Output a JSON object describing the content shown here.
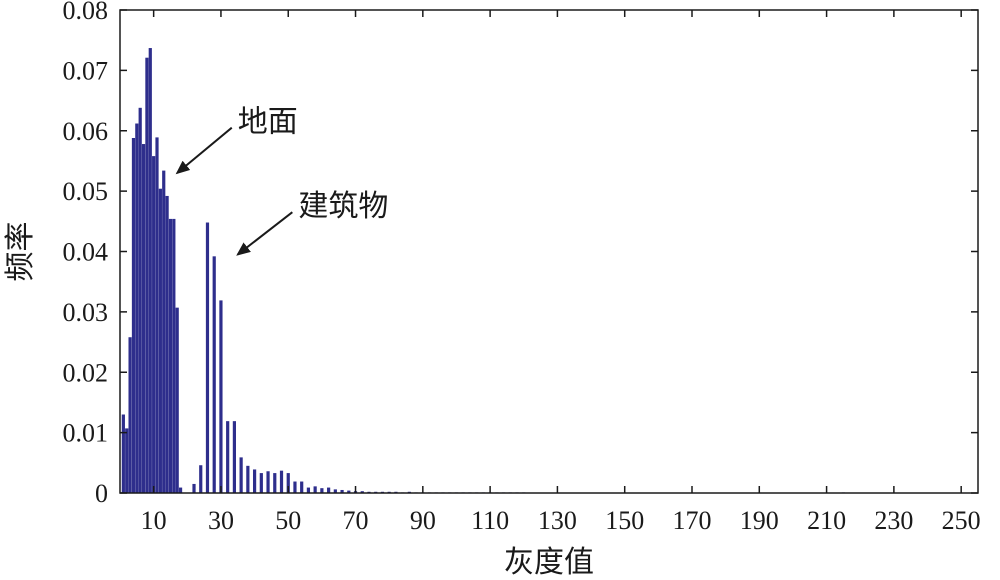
{
  "chart_data": {
    "type": "bar",
    "xlabel": "灰度值",
    "ylabel": "频率",
    "xlim": [
      0,
      255
    ],
    "ylim": [
      0,
      0.08
    ],
    "x_ticks": [
      10,
      30,
      50,
      70,
      90,
      110,
      130,
      150,
      170,
      190,
      210,
      230,
      250
    ],
    "x_tick_labels": [
      "10",
      "30",
      "50",
      "70",
      "90",
      "110",
      "130",
      "150",
      "170",
      "190",
      "210",
      "230",
      "250"
    ],
    "y_ticks": [
      0,
      0.01,
      0.02,
      0.03,
      0.04,
      0.05,
      0.06,
      0.07,
      0.08
    ],
    "y_tick_labels": [
      "0",
      "0.01",
      "0.02",
      "0.03",
      "0.04",
      "0.05",
      "0.06",
      "0.07",
      "0.08"
    ],
    "color": "#2e2e8c",
    "grid": false,
    "x": [
      1,
      2,
      3,
      4,
      5,
      6,
      7,
      8,
      9,
      10,
      11,
      12,
      13,
      14,
      15,
      16,
      17,
      18,
      19,
      20,
      22,
      24,
      26,
      28,
      30,
      32,
      34,
      36,
      38,
      40,
      42,
      44,
      46,
      48,
      50,
      52,
      54,
      56,
      58,
      60,
      62,
      64,
      66,
      68,
      70,
      72,
      74,
      76,
      78,
      80,
      82,
      84,
      86,
      88,
      90,
      92,
      94,
      96,
      98,
      100,
      102,
      104,
      106,
      108,
      110,
      112,
      114,
      116,
      118,
      120,
      215
    ],
    "values": [
      0.013,
      0.0107,
      0.0258,
      0.0588,
      0.0612,
      0.0638,
      0.0578,
      0.0721,
      0.0737,
      0.0558,
      0.0589,
      0.0504,
      0.0534,
      0.0492,
      0.0454,
      0.0454,
      0.0307,
      0.0009,
      0.0,
      0.0,
      0.0015,
      0.0046,
      0.0448,
      0.0392,
      0.0319,
      0.0119,
      0.0119,
      0.0059,
      0.0045,
      0.0039,
      0.0033,
      0.0036,
      0.0033,
      0.0037,
      0.0033,
      0.0019,
      0.0019,
      0.0009,
      0.0011,
      0.0008,
      0.0009,
      0.0006,
      0.0005,
      0.0004,
      0.0003,
      0.0003,
      0.0002,
      0.0002,
      0.0002,
      0.0002,
      0.0002,
      0.0001,
      0.0002,
      0.0001,
      0.0001,
      0.0001,
      0.0001,
      0.0001,
      0.0001,
      0.0001,
      0.0001,
      0.0001,
      0.0001,
      0.0001,
      0.0001,
      0.0001,
      0.0001,
      0.0001,
      0.0001,
      0.0001,
      0.0001
    ],
    "annotations": [
      {
        "text": "地面",
        "x": 17,
        "y": 0.053,
        "text_x": 35,
        "text_y": 0.0615
      },
      {
        "text": "建筑物",
        "x": 35,
        "y": 0.0395,
        "text_x": 53,
        "text_y": 0.0475
      }
    ]
  }
}
